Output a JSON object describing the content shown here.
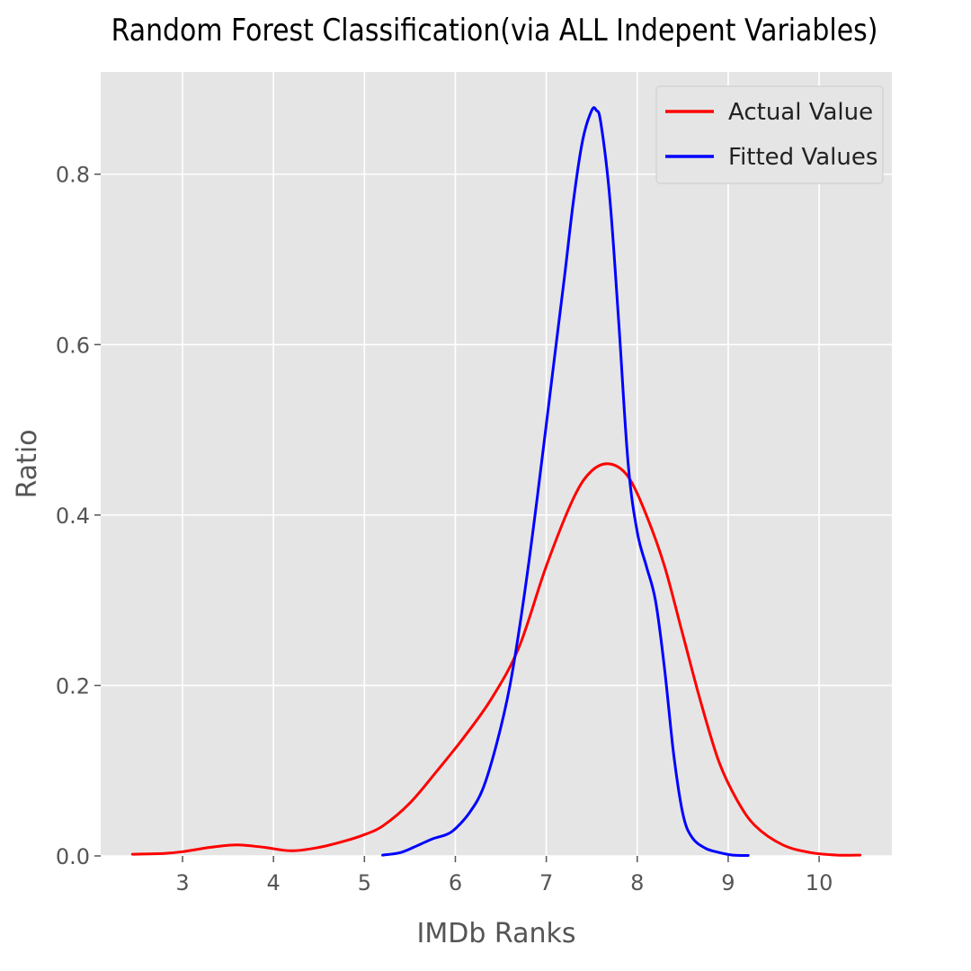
{
  "chart_data": {
    "type": "line",
    "title": "Random Forest Classification(via ALL Indepent Variables)",
    "xlabel": "IMDb Ranks",
    "ylabel": "Ratio",
    "xlim": [
      2.1,
      10.8
    ],
    "ylim": [
      0,
      0.92
    ],
    "x_ticks": [
      "3",
      "4",
      "5",
      "6",
      "7",
      "8",
      "9",
      "10"
    ],
    "y_ticks": [
      "0.0",
      "0.2",
      "0.4",
      "0.6",
      "0.8"
    ],
    "grid": true,
    "legend_position": "top-right",
    "series": [
      {
        "name": "Actual Value",
        "color": "#ff0000",
        "x": [
          2.45,
          2.8,
          3.0,
          3.3,
          3.6,
          3.9,
          4.2,
          4.5,
          4.8,
          5.0,
          5.2,
          5.5,
          5.8,
          6.1,
          6.4,
          6.7,
          7.0,
          7.3,
          7.5,
          7.7,
          7.9,
          8.1,
          8.3,
          8.5,
          8.7,
          8.9,
          9.1,
          9.3,
          9.6,
          9.9,
          10.2,
          10.45
        ],
        "y": [
          0.002,
          0.003,
          0.005,
          0.01,
          0.013,
          0.01,
          0.006,
          0.01,
          0.018,
          0.025,
          0.035,
          0.062,
          0.1,
          0.14,
          0.185,
          0.245,
          0.34,
          0.42,
          0.452,
          0.46,
          0.445,
          0.4,
          0.34,
          0.26,
          0.18,
          0.11,
          0.065,
          0.035,
          0.013,
          0.004,
          0.001,
          0.001
        ]
      },
      {
        "name": "Fitted Values",
        "color": "#0000ff",
        "x": [
          5.2,
          5.4,
          5.6,
          5.75,
          5.9,
          6.0,
          6.15,
          6.3,
          6.45,
          6.6,
          6.75,
          6.9,
          7.05,
          7.2,
          7.3,
          7.4,
          7.5,
          7.55,
          7.6,
          7.7,
          7.8,
          7.9,
          8.0,
          8.1,
          8.2,
          8.3,
          8.4,
          8.5,
          8.6,
          8.75,
          8.9,
          9.05,
          9.22
        ],
        "y": [
          0.001,
          0.004,
          0.013,
          0.02,
          0.025,
          0.032,
          0.05,
          0.078,
          0.13,
          0.2,
          0.3,
          0.42,
          0.55,
          0.68,
          0.77,
          0.84,
          0.875,
          0.875,
          0.86,
          0.77,
          0.62,
          0.46,
          0.38,
          0.34,
          0.3,
          0.22,
          0.12,
          0.05,
          0.022,
          0.009,
          0.004,
          0.001,
          0.0005
        ]
      }
    ]
  }
}
